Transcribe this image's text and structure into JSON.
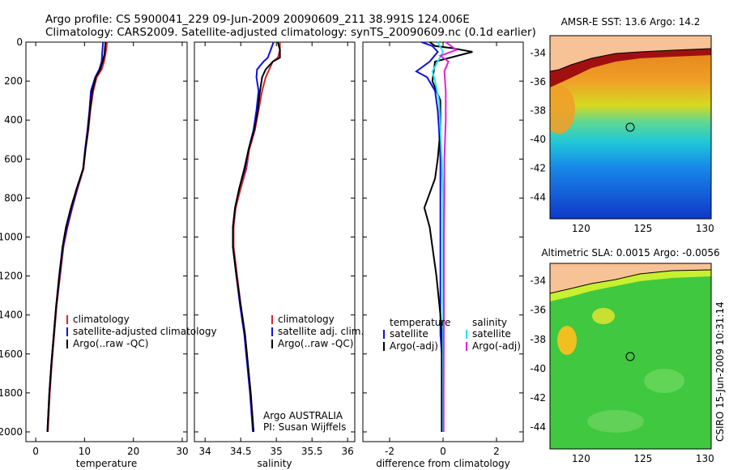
{
  "header": {
    "line1": "Argo profile: CS 5900041_229 09-Jun-2009 20090609_211 38.991S 124.006E",
    "line2": "Climatology: CARS2009. Satellite-adjusted climatology: synTS_20090609.nc (0.1d earlier)"
  },
  "colors": {
    "red": "#d62728",
    "blue": "#1010e0",
    "black": "#000000",
    "cyan": "#22e5f0",
    "magenta": "#e020d8",
    "land": "#f7c296"
  },
  "chart_data": [
    {
      "type": "line",
      "id": "temperature",
      "xlabel": "temperature",
      "ylabel": "",
      "xlim": [
        -2,
        31
      ],
      "ylim": [
        2050,
        0
      ],
      "xticks": [
        "0",
        "10",
        "20",
        "30"
      ],
      "xtick_values": [
        0,
        10,
        20,
        30
      ],
      "yticks": [
        "0",
        "200",
        "400",
        "600",
        "800",
        "1000",
        "1200",
        "1400",
        "1600",
        "1800",
        "2000"
      ],
      "ytick_values": [
        0,
        200,
        400,
        600,
        800,
        1000,
        1200,
        1400,
        1600,
        1800,
        2000
      ],
      "legend": [
        "climatology",
        "satellite-adjusted climatology",
        "Argo(..raw -QC)"
      ],
      "series": [
        {
          "name": "climatology",
          "color": "red",
          "x": [
            14.6,
            14.5,
            14.3,
            14.0,
            13.5,
            12.5,
            11.8,
            11.2,
            10.8,
            10.2,
            9.8,
            8.6,
            7.5,
            6.5,
            5.7,
            5.0,
            4.3,
            3.8,
            3.3,
            2.9,
            2.6,
            2.5
          ],
          "y": [
            0,
            25,
            60,
            100,
            140,
            180,
            250,
            350,
            450,
            550,
            650,
            750,
            850,
            950,
            1050,
            1200,
            1350,
            1500,
            1650,
            1800,
            1950,
            2000
          ]
        },
        {
          "name": "satellite",
          "color": "blue",
          "x": [
            13.8,
            13.7,
            13.6,
            13.5,
            13.0,
            12.2,
            11.3,
            11.0,
            10.6,
            10.1,
            9.7,
            8.5,
            7.4,
            6.4,
            5.6,
            4.9,
            4.2,
            3.7,
            3.2,
            2.8,
            2.5,
            2.4
          ],
          "y": [
            0,
            25,
            60,
            100,
            140,
            180,
            250,
            350,
            450,
            550,
            650,
            750,
            850,
            950,
            1050,
            1200,
            1350,
            1500,
            1650,
            1800,
            1950,
            2000
          ]
        },
        {
          "name": "argo",
          "color": "black",
          "x": [
            14.3,
            14.2,
            14.1,
            13.7,
            13.2,
            12.3,
            11.6,
            11.1,
            10.7,
            10.2,
            9.7,
            8.4,
            7.2,
            6.2,
            5.5,
            4.8,
            4.2,
            3.7,
            3.2,
            2.8,
            2.5,
            2.4
          ],
          "y": [
            0,
            25,
            60,
            100,
            140,
            180,
            250,
            350,
            450,
            550,
            650,
            750,
            850,
            950,
            1050,
            1200,
            1350,
            1500,
            1650,
            1800,
            1950,
            2000
          ]
        }
      ]
    },
    {
      "type": "line",
      "id": "salinity",
      "xlabel": "salinity",
      "ylabel": "",
      "xlim": [
        33.85,
        36.1
      ],
      "ylim": [
        2050,
        0
      ],
      "xticks": [
        "34",
        "34.5",
        "35",
        "35.5",
        "36"
      ],
      "xtick_values": [
        34,
        34.5,
        35,
        35.5,
        36
      ],
      "legend": [
        "climatology",
        "satellite adj. clim.",
        "Argo(..raw -QC)"
      ],
      "annotation": [
        "Argo AUSTRALIA",
        "PI: Susan Wijffels"
      ],
      "series": [
        {
          "name": "climatology",
          "color": "red",
          "x": [
            35.05,
            35.05,
            35.02,
            34.95,
            34.9,
            34.85,
            34.8,
            34.75,
            34.7,
            34.62,
            34.58,
            34.5,
            34.43,
            34.4,
            34.4,
            34.45,
            34.5,
            34.56,
            34.6,
            34.64,
            34.67,
            34.68
          ],
          "y": [
            0,
            40,
            80,
            100,
            140,
            180,
            250,
            350,
            450,
            550,
            650,
            750,
            850,
            950,
            1050,
            1200,
            1350,
            1500,
            1650,
            1800,
            1950,
            2000
          ]
        },
        {
          "name": "satellite",
          "color": "blue",
          "x": [
            34.96,
            34.92,
            34.88,
            34.82,
            34.73,
            34.72,
            34.75,
            34.72,
            34.68,
            34.61,
            34.56,
            34.48,
            34.42,
            34.39,
            34.39,
            34.44,
            34.49,
            34.55,
            34.59,
            34.63,
            34.66,
            34.67
          ],
          "y": [
            0,
            40,
            80,
            100,
            140,
            180,
            250,
            350,
            450,
            550,
            650,
            750,
            850,
            950,
            1050,
            1200,
            1350,
            1500,
            1650,
            1800,
            1950,
            2000
          ]
        },
        {
          "name": "argo",
          "color": "black",
          "x": [
            35.02,
            35.05,
            35.05,
            34.95,
            34.85,
            34.8,
            34.77,
            34.74,
            34.69,
            34.61,
            34.55,
            34.48,
            34.42,
            34.39,
            34.39,
            34.44,
            34.5,
            34.56,
            34.6,
            34.64,
            34.67,
            34.68
          ],
          "y": [
            0,
            40,
            80,
            100,
            140,
            180,
            250,
            350,
            450,
            550,
            650,
            750,
            850,
            950,
            1050,
            1200,
            1350,
            1500,
            1650,
            1800,
            1950,
            2000
          ]
        }
      ]
    },
    {
      "type": "line",
      "id": "difference",
      "xlabel": "difference from climatology",
      "ylabel": "",
      "xlim": [
        -3,
        3
      ],
      "ylim": [
        2050,
        0
      ],
      "xticks": [
        "-2",
        "0",
        "2"
      ],
      "xtick_values": [
        -2,
        0,
        2
      ],
      "legend_title_left": "temperature",
      "legend_title_right": "salinity",
      "legend": [
        "satellite",
        "Argo(-adj)",
        "satellite",
        "Argo(-adj)"
      ],
      "series": [
        {
          "name": "temperature satellite",
          "color": "blue",
          "x": [
            -0.8,
            -0.4,
            -0.2,
            -0.5,
            -1.0,
            -0.6,
            -0.3,
            -0.2,
            -0.15,
            -0.1,
            -0.1,
            -0.1,
            -0.1,
            -0.1,
            -0.1,
            -0.1,
            -0.05,
            -0.05,
            -0.05,
            -0.05
          ],
          "y": [
            0,
            20,
            50,
            100,
            150,
            180,
            250,
            350,
            450,
            600,
            800,
            900,
            1000,
            1200,
            1400,
            1500,
            1600,
            1800,
            1950,
            2000
          ]
        },
        {
          "name": "temperature argo",
          "color": "black",
          "x": [
            -0.5,
            -0.3,
            0.3,
            1.1,
            -0.3,
            -0.4,
            -0.1,
            -0.1,
            -0.2,
            -0.3,
            -0.7,
            -0.5,
            -0.4,
            -0.25,
            -0.1,
            -0.05,
            -0.05,
            -0.05,
            -0.05
          ],
          "y": [
            0,
            20,
            30,
            50,
            100,
            200,
            300,
            450,
            600,
            700,
            850,
            950,
            1050,
            1200,
            1400,
            1500,
            1650,
            1800,
            2000
          ]
        },
        {
          "name": "salinity satellite",
          "color": "cyan",
          "x": [
            -0.2,
            0.0,
            -0.2,
            -0.4,
            -0.3,
            -0.15,
            -0.1,
            -0.05,
            0.0,
            0.0,
            0.0,
            0.0,
            0.0,
            0.0,
            0.0
          ],
          "y": [
            0,
            50,
            100,
            150,
            200,
            300,
            450,
            600,
            800,
            1000,
            1200,
            1400,
            1600,
            1800,
            2000
          ]
        },
        {
          "name": "salinity argo",
          "color": "magenta",
          "x": [
            0.1,
            0.5,
            -0.1,
            0.2,
            0.05,
            0.1,
            0.1,
            0.05,
            0.05,
            0.03,
            0.03,
            0.02,
            0.02
          ],
          "y": [
            0,
            40,
            70,
            100,
            150,
            250,
            400,
            600,
            800,
            1000,
            1400,
            1800,
            2000
          ]
        }
      ]
    },
    {
      "type": "heatmap",
      "id": "sst-map",
      "title": "AMSR-E SST: 13.6 Argo: 14.2",
      "xlim": [
        117.5,
        130.5
      ],
      "ylim": [
        -45.5,
        -32.8
      ],
      "xticks": [
        "120",
        "125",
        "130"
      ],
      "xtick_values": [
        120,
        125,
        130
      ],
      "yticks": [
        "-34",
        "-36",
        "-38",
        "-40",
        "-42",
        "-44"
      ],
      "ytick_values": [
        -34,
        -36,
        -38,
        -40,
        -42,
        -44
      ],
      "marker": {
        "lon": 124.006,
        "lat": -38.991
      }
    },
    {
      "type": "heatmap",
      "id": "sla-map",
      "title": "Altimetric SLA: 0.0015 Argo: -0.0056",
      "xlim": [
        117.5,
        130.5
      ],
      "ylim": [
        -45.5,
        -32.8
      ],
      "xticks": [
        "120",
        "125",
        "130"
      ],
      "xtick_values": [
        120,
        125,
        130
      ],
      "yticks": [
        "-34",
        "-36",
        "-38",
        "-40",
        "-42",
        "-44"
      ],
      "ytick_values": [
        -34,
        -36,
        -38,
        -40,
        -42,
        -44
      ],
      "marker": {
        "lon": 124.006,
        "lat": -38.991
      }
    }
  ],
  "side_label": "CSIRO 15-Jun-2009 10:31:14"
}
